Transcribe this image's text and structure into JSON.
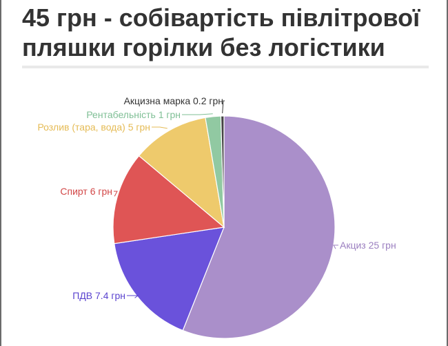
{
  "title": {
    "bold": "45 грн",
    "rest": " - собівартість півлітрової пляшки горілки без логістики"
  },
  "chart_data": {
    "type": "pie",
    "title": "45 грн - собівартість півлітрової пляшки горілки без логістики",
    "slices": [
      {
        "label": "Акциз 25 грн",
        "value": 25,
        "color": "#aa8fca",
        "text_color": "#9b7fc0"
      },
      {
        "label": "ПДВ 7.4 грн",
        "value": 7.4,
        "color": "#6a52db",
        "text_color": "#5a43cf"
      },
      {
        "label": "Спирт 6 грн",
        "value": 6,
        "color": "#df5555",
        "text_color": "#d24747"
      },
      {
        "label": "Розлив (тара, вода) 5 грн",
        "value": 5,
        "color": "#eeca6c",
        "text_color": "#e5bb55"
      },
      {
        "label": "Рентабельність 1 грн",
        "value": 1,
        "color": "#91c9a2",
        "text_color": "#7fbf95"
      },
      {
        "label": "Акцизна марка 0.2 грн",
        "value": 0.2,
        "color": "#444444",
        "text_color": "#333333"
      }
    ]
  }
}
